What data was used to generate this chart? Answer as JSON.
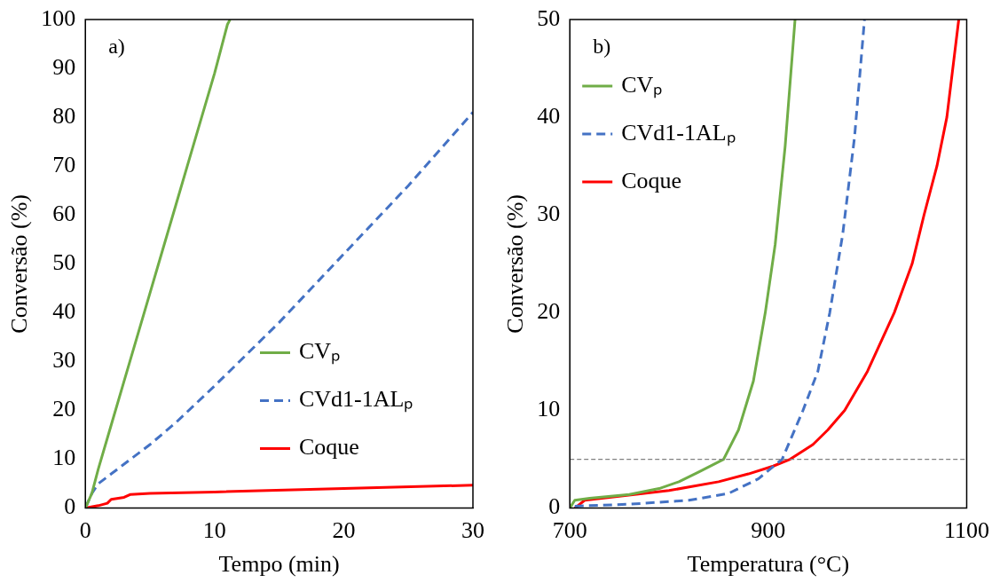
{
  "chart_data": [
    {
      "type": "line",
      "xlabel": "Tempo (min)",
      "ylabel": "Conversão (%)",
      "annotations": [
        "a)"
      ],
      "xlim": [
        0,
        30
      ],
      "xticks": [
        0,
        10,
        20,
        30
      ],
      "ylim": [
        0,
        100
      ],
      "yticks": [
        0,
        10,
        20,
        30,
        40,
        50,
        60,
        70,
        80,
        90,
        100
      ],
      "grid": false,
      "legend": "bottom right",
      "marker": "none",
      "series": [
        {
          "name": "CVₚ",
          "color": "#70ad47",
          "line_style": "solid",
          "x": [
            0,
            0.5,
            1,
            2,
            3,
            4,
            5,
            6,
            7,
            8,
            9,
            10,
            10.5,
            11,
            11.2
          ],
          "values": [
            0,
            3,
            8,
            17,
            26,
            35,
            44,
            53,
            62,
            71,
            80,
            89,
            94,
            99,
            100
          ]
        },
        {
          "name": "CVd1-1ALₚ",
          "color": "#4472c4",
          "line_style": "dashed",
          "x": [
            0,
            0.5,
            1,
            2,
            3,
            5,
            7,
            10,
            15,
            20,
            25,
            30
          ],
          "values": [
            0,
            3,
            5,
            7,
            9,
            13,
            17.5,
            25,
            38,
            52,
            66,
            81
          ]
        },
        {
          "name": "Coque",
          "color": "#ff0000",
          "line_style": "solid",
          "x": [
            0,
            1,
            1.7,
            2,
            3,
            3.5,
            5,
            10,
            20,
            30
          ],
          "values": [
            0,
            0.5,
            1,
            1.8,
            2.2,
            2.8,
            3,
            3.3,
            4,
            4.7
          ]
        }
      ]
    },
    {
      "type": "line",
      "xlabel": "Temperatura (°C)",
      "ylabel": "Conversão (%)",
      "annotations": [
        "b)"
      ],
      "xlim": [
        700,
        1100
      ],
      "xticks": [
        700,
        900,
        1100
      ],
      "ylim": [
        0,
        50
      ],
      "yticks": [
        0,
        10,
        20,
        30,
        40,
        50
      ],
      "grid": false,
      "legend": "top left",
      "marker": "none",
      "ref_lines": [
        {
          "axis": "y",
          "value": 5,
          "color": "#808080",
          "line_style": "dashed"
        }
      ],
      "series": [
        {
          "name": "CVₚ",
          "color": "#70ad47",
          "line_style": "solid",
          "x": [
            700,
            705,
            720,
            760,
            790,
            810,
            830,
            855,
            870,
            885,
            897,
            907,
            917,
            927
          ],
          "values": [
            0,
            0.8,
            1,
            1.4,
            2,
            2.7,
            3.7,
            5,
            8,
            13,
            20,
            27,
            37,
            50
          ]
        },
        {
          "name": "CVd1-1ALₚ",
          "color": "#4472c4",
          "line_style": "dashed",
          "x": [
            705,
            760,
            820,
            860,
            890,
            914,
            935,
            950,
            962,
            975,
            987,
            997
          ],
          "values": [
            0.2,
            0.4,
            0.8,
            1.5,
            3,
            5,
            10,
            14,
            20,
            28,
            38,
            50
          ]
        },
        {
          "name": "Coque",
          "color": "#ff0000",
          "line_style": "solid",
          "x": [
            705,
            715,
            800,
            850,
            880,
            905,
            922,
            945,
            960,
            977,
            1000,
            1027,
            1045,
            1057,
            1070,
            1080,
            1092
          ],
          "values": [
            0,
            0.8,
            1.8,
            2.7,
            3.5,
            4.3,
            5,
            6.5,
            8,
            10,
            14,
            20,
            25,
            30,
            35,
            40,
            50
          ]
        }
      ]
    }
  ]
}
